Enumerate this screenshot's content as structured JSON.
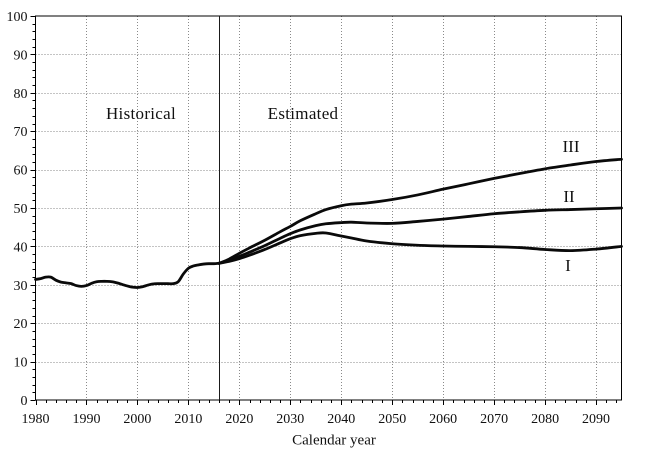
{
  "chart_data": {
    "type": "line",
    "title": "",
    "xlabel": "Calendar year",
    "ylabel": "",
    "xlim": [
      1980,
      2095
    ],
    "ylim": [
      0,
      100
    ],
    "x_ticks": [
      1980,
      1990,
      2000,
      2010,
      2020,
      2030,
      2040,
      2050,
      2060,
      2070,
      2080,
      2090
    ],
    "y_ticks": [
      0,
      10,
      20,
      30,
      40,
      50,
      60,
      70,
      80,
      90,
      100
    ],
    "minor_tick_step_x": 2,
    "minor_tick_step_y": 2,
    "grid": "dotted gridlines at major ticks, full frame box",
    "legend_position": "inline labels on curves",
    "divider_year": 2016,
    "region_labels": {
      "historical": "Historical",
      "estimated": "Estimated"
    },
    "colors": {
      "line": "#0a0a0a",
      "grid": "#8a8a8a",
      "frame": "#000000",
      "background": "#ffffff"
    },
    "series": [
      {
        "name": "Historical",
        "x": [
          1980,
          1981,
          1982,
          1983,
          1984,
          1985,
          1986,
          1987,
          1988,
          1989,
          1990,
          1991,
          1992,
          1993,
          1994,
          1995,
          1996,
          1997,
          1998,
          1999,
          2000,
          2001,
          2002,
          2003,
          2004,
          2005,
          2006,
          2007,
          2008,
          2009,
          2010,
          2011,
          2012,
          2013,
          2014,
          2015,
          2016
        ],
        "values": [
          31.4,
          31.6,
          32.0,
          32.0,
          31.2,
          30.7,
          30.5,
          30.3,
          29.8,
          29.6,
          29.8,
          30.4,
          30.8,
          30.9,
          30.9,
          30.8,
          30.5,
          30.1,
          29.7,
          29.4,
          29.3,
          29.5,
          29.9,
          30.2,
          30.3,
          30.3,
          30.3,
          30.3,
          30.8,
          32.8,
          34.3,
          34.9,
          35.2,
          35.4,
          35.5,
          35.5,
          35.6
        ]
      },
      {
        "name": "III",
        "x": [
          2016,
          2018,
          2020,
          2022,
          2025,
          2028,
          2030,
          2032,
          2035,
          2037,
          2040,
          2042,
          2045,
          2050,
          2055,
          2060,
          2065,
          2070,
          2075,
          2080,
          2085,
          2090,
          2095
        ],
        "values": [
          35.6,
          36.7,
          38.2,
          39.6,
          41.6,
          43.8,
          45.2,
          46.7,
          48.5,
          49.6,
          50.6,
          51.0,
          51.3,
          52.2,
          53.4,
          54.9,
          56.3,
          57.7,
          59.0,
          60.2,
          61.2,
          62.1,
          62.7
        ]
      },
      {
        "name": "II",
        "x": [
          2016,
          2018,
          2020,
          2022,
          2025,
          2028,
          2030,
          2032,
          2035,
          2037,
          2040,
          2042,
          2045,
          2050,
          2055,
          2060,
          2065,
          2070,
          2075,
          2080,
          2085,
          2090,
          2095
        ],
        "values": [
          35.6,
          36.4,
          37.4,
          38.5,
          40.2,
          42.1,
          43.3,
          44.3,
          45.4,
          45.9,
          46.2,
          46.3,
          46.1,
          46.0,
          46.5,
          47.1,
          47.8,
          48.5,
          49.0,
          49.4,
          49.6,
          49.8,
          50.0
        ]
      },
      {
        "name": "I",
        "x": [
          2016,
          2018,
          2020,
          2022,
          2025,
          2028,
          2030,
          2032,
          2035,
          2037,
          2040,
          2042,
          2045,
          2050,
          2055,
          2060,
          2065,
          2070,
          2075,
          2080,
          2085,
          2090,
          2095
        ],
        "values": [
          35.6,
          36.1,
          36.8,
          37.7,
          39.2,
          40.9,
          42.0,
          42.8,
          43.4,
          43.5,
          42.7,
          42.2,
          41.4,
          40.7,
          40.3,
          40.1,
          40.0,
          39.9,
          39.7,
          39.2,
          38.9,
          39.3,
          40.0
        ]
      }
    ]
  }
}
